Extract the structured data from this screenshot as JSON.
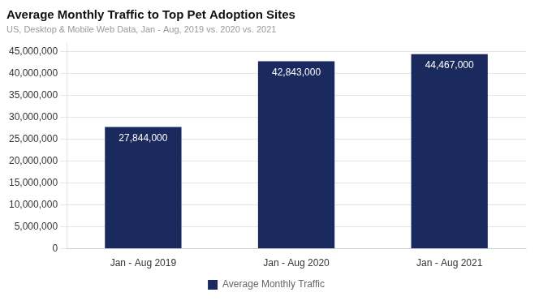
{
  "chart_data": {
    "type": "bar",
    "title": "Average Monthly Traffic to Top Pet Adoption Sites",
    "subtitle": "US, Desktop & Mobile Web Data, Jan - Aug, 2019 vs. 2020 vs. 2021",
    "categories": [
      "Jan - Aug 2019",
      "Jan - Aug 2020",
      "Jan - Aug 2021"
    ],
    "series": [
      {
        "name": "Average Monthly Traffic",
        "color": "#1b2a5e",
        "values": [
          27844000,
          42843000,
          44467000
        ],
        "value_labels": [
          "27,844,000",
          "42,843,000",
          "44,467,000"
        ]
      }
    ],
    "ylim": [
      0,
      47000000
    ],
    "yticks": [
      0,
      {
        "value": 5000000,
        "label": "5,000,000"
      },
      {
        "value": 10000000,
        "label": "10,000,000"
      },
      {
        "value": 15000000,
        "label": "15,000,000"
      },
      {
        "value": 20000000,
        "label": "20,000,000"
      },
      {
        "value": 25000000,
        "label": "25,000,000"
      },
      {
        "value": 30000000,
        "label": "30,000,000"
      },
      {
        "value": 35000000,
        "label": "35,000,000"
      },
      {
        "value": 40000000,
        "label": "40,000,000"
      },
      {
        "value": 45000000,
        "label": "45,000,000"
      }
    ],
    "grid": true,
    "legend": "bottom",
    "data_labels": true
  }
}
